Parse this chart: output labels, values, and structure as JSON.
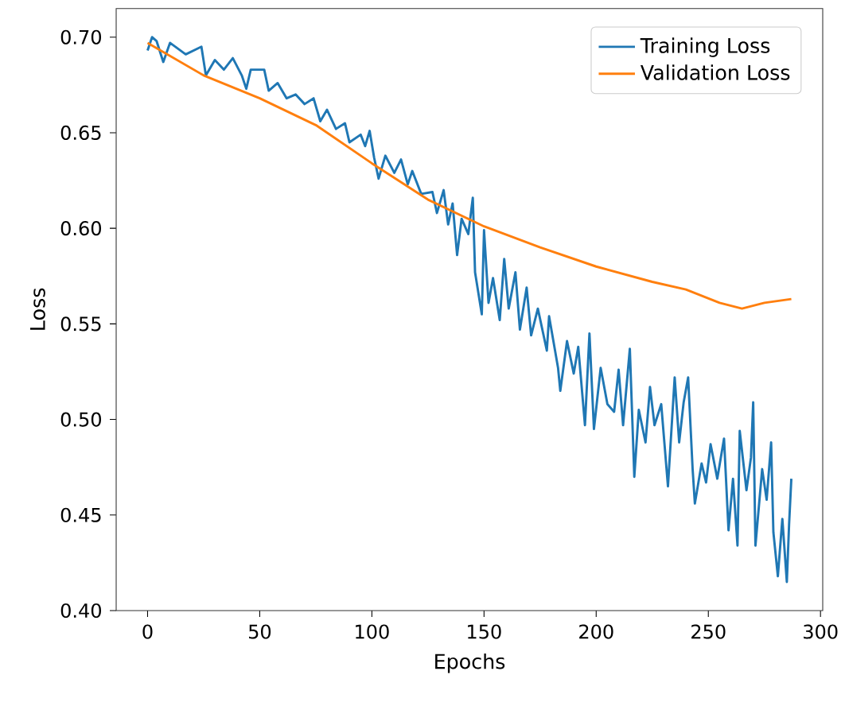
{
  "chart_data": {
    "type": "line",
    "xlabel": "Epochs",
    "ylabel": "Loss",
    "xlim": [
      -14,
      301
    ],
    "ylim": [
      0.4,
      0.715
    ],
    "xticks": [
      0,
      50,
      100,
      150,
      200,
      250,
      300
    ],
    "yticks": [
      {
        "value": 0.4,
        "label": "0.40"
      },
      {
        "value": 0.45,
        "label": "0.45"
      },
      {
        "value": 0.5,
        "label": "0.50"
      },
      {
        "value": 0.55,
        "label": "0.55"
      },
      {
        "value": 0.6,
        "label": "0.60"
      },
      {
        "value": 0.65,
        "label": "0.65"
      },
      {
        "value": 0.7,
        "label": "0.70"
      }
    ],
    "legend": "top right",
    "grid": false,
    "marker": "none",
    "line_style": "solid",
    "series": [
      {
        "name": "Training Loss",
        "color": "#1f77b4",
        "x": [
          0,
          2,
          4,
          7,
          10,
          17,
          24,
          26,
          30,
          34,
          38,
          42,
          44,
          46,
          52,
          54,
          58,
          62,
          66,
          70,
          74,
          77,
          80,
          84,
          88,
          90,
          95,
          97,
          99,
          101,
          103,
          106,
          110,
          113,
          116,
          118,
          122,
          127,
          129,
          132,
          134,
          136,
          138,
          140,
          143,
          145,
          146,
          149,
          150,
          152,
          154,
          157,
          159,
          161,
          164,
          166,
          169,
          171,
          174,
          178,
          179,
          183,
          184,
          187,
          190,
          192,
          195,
          197,
          199,
          202,
          205,
          208,
          210,
          212,
          215,
          217,
          219,
          222,
          224,
          226,
          229,
          232,
          235,
          237,
          239,
          241,
          243,
          244,
          247,
          249,
          251,
          254,
          257,
          259,
          261,
          263,
          264,
          267,
          269,
          270,
          271,
          274,
          276,
          278,
          279,
          281,
          283,
          285,
          286,
          287
        ],
        "values": [
          0.693,
          0.7,
          0.698,
          0.687,
          0.697,
          0.691,
          0.695,
          0.68,
          0.688,
          0.683,
          0.689,
          0.68,
          0.673,
          0.683,
          0.683,
          0.672,
          0.676,
          0.668,
          0.67,
          0.665,
          0.668,
          0.656,
          0.662,
          0.652,
          0.655,
          0.645,
          0.649,
          0.643,
          0.651,
          0.637,
          0.626,
          0.638,
          0.629,
          0.636,
          0.623,
          0.63,
          0.618,
          0.619,
          0.608,
          0.62,
          0.602,
          0.613,
          0.586,
          0.605,
          0.597,
          0.616,
          0.577,
          0.555,
          0.599,
          0.561,
          0.574,
          0.552,
          0.584,
          0.558,
          0.577,
          0.547,
          0.569,
          0.544,
          0.558,
          0.536,
          0.554,
          0.527,
          0.515,
          0.541,
          0.524,
          0.538,
          0.497,
          0.545,
          0.495,
          0.527,
          0.508,
          0.504,
          0.526,
          0.497,
          0.537,
          0.47,
          0.505,
          0.488,
          0.517,
          0.497,
          0.508,
          0.465,
          0.522,
          0.488,
          0.509,
          0.522,
          0.474,
          0.456,
          0.477,
          0.467,
          0.487,
          0.469,
          0.49,
          0.442,
          0.469,
          0.434,
          0.494,
          0.463,
          0.48,
          0.509,
          0.434,
          0.474,
          0.458,
          0.488,
          0.441,
          0.418,
          0.448,
          0.415,
          0.445,
          0.469
        ]
      },
      {
        "name": "Validation Loss",
        "color": "#ff7f0e",
        "x": [
          0,
          25,
          50,
          75,
          100,
          125,
          150,
          175,
          200,
          225,
          240,
          255,
          265,
          275,
          287
        ],
        "values": [
          0.697,
          0.68,
          0.668,
          0.654,
          0.634,
          0.615,
          0.601,
          0.59,
          0.58,
          0.572,
          0.568,
          0.561,
          0.558,
          0.561,
          0.563
        ]
      }
    ]
  }
}
